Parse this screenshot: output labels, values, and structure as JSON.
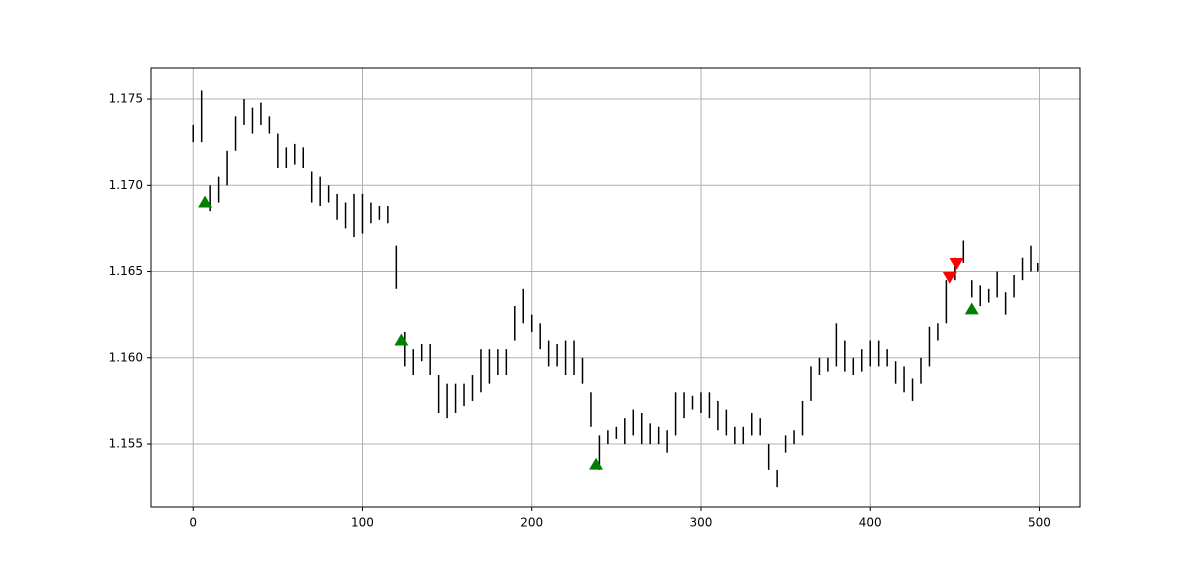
{
  "chart_data": {
    "type": "range",
    "x": [
      0,
      5,
      10,
      15,
      20,
      25,
      30,
      35,
      40,
      45,
      50,
      55,
      60,
      65,
      70,
      75,
      80,
      85,
      90,
      95,
      100,
      105,
      110,
      115,
      120,
      125,
      130,
      135,
      140,
      145,
      150,
      155,
      160,
      165,
      170,
      175,
      180,
      185,
      190,
      195,
      200,
      205,
      210,
      215,
      220,
      225,
      230,
      235,
      240,
      245,
      250,
      255,
      260,
      265,
      270,
      275,
      280,
      285,
      290,
      295,
      300,
      305,
      310,
      315,
      320,
      325,
      330,
      335,
      340,
      345,
      350,
      355,
      360,
      365,
      370,
      375,
      380,
      385,
      390,
      395,
      400,
      405,
      410,
      415,
      420,
      425,
      430,
      435,
      440,
      445,
      450,
      455,
      460,
      465,
      470,
      475,
      480,
      485,
      490,
      495,
      499
    ],
    "low": [
      1.1725,
      1.1725,
      1.1685,
      1.169,
      1.17,
      1.172,
      1.1735,
      1.173,
      1.1735,
      1.173,
      1.171,
      1.171,
      1.1712,
      1.171,
      1.169,
      1.1688,
      1.169,
      1.168,
      1.1675,
      1.167,
      1.1672,
      1.1678,
      1.168,
      1.1678,
      1.164,
      1.1595,
      1.159,
      1.1598,
      1.159,
      1.1568,
      1.1565,
      1.1568,
      1.1572,
      1.1575,
      1.158,
      1.1585,
      1.159,
      1.159,
      1.161,
      1.162,
      1.1615,
      1.1605,
      1.1595,
      1.1595,
      1.159,
      1.159,
      1.1585,
      1.156,
      1.1535,
      1.155,
      1.1553,
      1.155,
      1.1555,
      1.155,
      1.155,
      1.155,
      1.1545,
      1.1555,
      1.1565,
      1.157,
      1.1568,
      1.1565,
      1.1558,
      1.1555,
      1.155,
      1.155,
      1.1555,
      1.1555,
      1.1535,
      1.1525,
      1.1545,
      1.155,
      1.1555,
      1.1575,
      1.159,
      1.1592,
      1.1595,
      1.1592,
      1.159,
      1.1592,
      1.1595,
      1.1595,
      1.1595,
      1.1585,
      1.158,
      1.1575,
      1.1585,
      1.1595,
      1.161,
      1.162,
      1.1645,
      1.1655,
      1.1635,
      1.163,
      1.1632,
      1.1635,
      1.1625,
      1.1635,
      1.1645,
      1.165,
      1.165
    ],
    "high": [
      1.1735,
      1.1755,
      1.17,
      1.1705,
      1.172,
      1.174,
      1.175,
      1.1745,
      1.1748,
      1.174,
      1.173,
      1.1722,
      1.1724,
      1.1722,
      1.1708,
      1.1705,
      1.17,
      1.1695,
      1.169,
      1.1695,
      1.1695,
      1.169,
      1.1688,
      1.1688,
      1.1665,
      1.1615,
      1.1605,
      1.1608,
      1.1608,
      1.159,
      1.1585,
      1.1585,
      1.1585,
      1.159,
      1.1605,
      1.1605,
      1.1605,
      1.1605,
      1.163,
      1.164,
      1.1625,
      1.162,
      1.161,
      1.1608,
      1.161,
      1.161,
      1.16,
      1.158,
      1.1555,
      1.1558,
      1.156,
      1.1565,
      1.157,
      1.1568,
      1.1562,
      1.156,
      1.1558,
      1.158,
      1.158,
      1.1578,
      1.158,
      1.158,
      1.1575,
      1.157,
      1.156,
      1.156,
      1.1568,
      1.1565,
      1.155,
      1.1535,
      1.1555,
      1.1558,
      1.1575,
      1.1595,
      1.16,
      1.16,
      1.162,
      1.161,
      1.16,
      1.1605,
      1.161,
      1.161,
      1.1605,
      1.1598,
      1.1595,
      1.1588,
      1.16,
      1.1618,
      1.162,
      1.1645,
      1.1658,
      1.1668,
      1.1645,
      1.1642,
      1.164,
      1.165,
      1.1638,
      1.1648,
      1.1658,
      1.1665,
      1.1655
    ],
    "color": "#000000",
    "buy_signals": {
      "x": [
        7,
        123,
        238,
        460
      ],
      "y": [
        1.169,
        1.161,
        1.1538,
        1.1628
      ],
      "color": "#008000"
    },
    "sell_signals": {
      "x": [
        447,
        451
      ],
      "y": [
        1.1647,
        1.1655
      ],
      "color": "#ff0000"
    },
    "xlim": [
      -24.95,
      523.95
    ],
    "ylim": [
      1.15135,
      1.1768
    ],
    "xticks": [
      0,
      100,
      200,
      300,
      400,
      500
    ],
    "yticks": [
      1.155,
      {
        "value": 1.16,
        "label": "1.160"
      },
      1.165,
      {
        "value": 1.17,
        "label": "1.170"
      },
      1.175
    ],
    "grid": true
  }
}
